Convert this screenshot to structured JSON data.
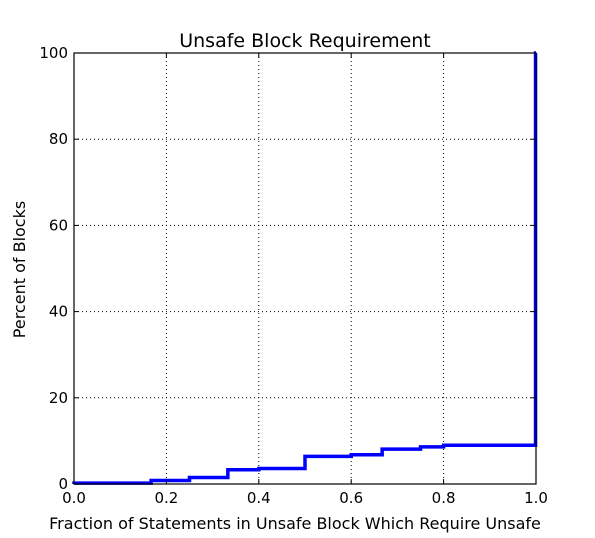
{
  "chart_data": {
    "type": "line",
    "title": "Unsafe Block Requirement",
    "xlabel": "Fraction of Statements in Unsafe Block Which Require Unsafe",
    "ylabel": "Percent of Blocks",
    "xlim": [
      0.0,
      1.0
    ],
    "ylim": [
      0,
      100
    ],
    "xticks": [
      "0.0",
      "0.2",
      "0.4",
      "0.6",
      "0.8",
      "1.0"
    ],
    "yticks": [
      "0",
      "20",
      "40",
      "60",
      "80",
      "100"
    ],
    "grid": true,
    "line_style": "step",
    "series": [
      {
        "color": "#0000ff",
        "x": [
          0.0,
          0.0,
          0.167,
          0.167,
          0.25,
          0.25,
          0.333,
          0.333,
          0.4,
          0.4,
          0.5,
          0.5,
          0.6,
          0.6,
          0.667,
          0.667,
          0.75,
          0.75,
          0.8,
          0.8,
          0.999,
          0.999,
          1.0
        ],
        "y": [
          0.0,
          0.2,
          0.2,
          0.8,
          0.8,
          1.5,
          1.5,
          3.3,
          3.3,
          3.6,
          3.6,
          6.4,
          6.4,
          6.8,
          6.8,
          8.1,
          8.1,
          8.6,
          8.6,
          9.0,
          9.0,
          100,
          100
        ]
      }
    ]
  }
}
